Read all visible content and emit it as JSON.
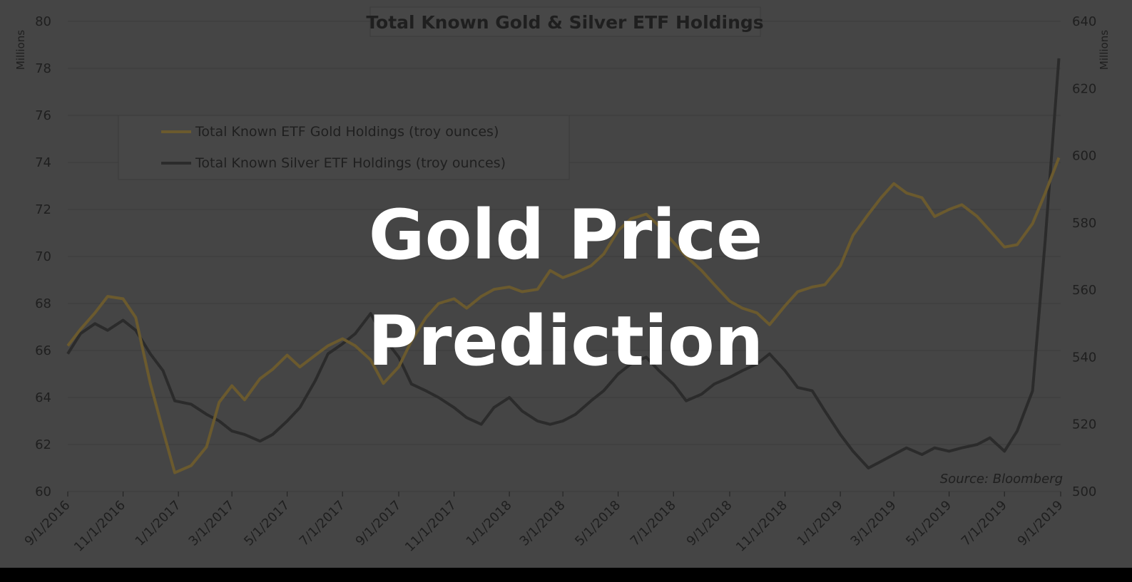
{
  "overlay": {
    "line1": "Gold Price",
    "line2": "Prediction"
  },
  "source_note": "Source: Bloomberg",
  "colors": {
    "background": "#454545",
    "grid": "#3a3a3a",
    "gold": "#6b5a2e",
    "silver": "#2b2b2b",
    "text": "#1f1f1f",
    "overlay_text": "#ffffff"
  },
  "chart_data": {
    "type": "line",
    "title": "Total Known Gold & Silver ETF Holdings",
    "ylabel_left": "Millions",
    "ylabel_right": "Millions",
    "ylim_left": [
      60,
      80
    ],
    "ylim_right": [
      500,
      640
    ],
    "yticks_left": [
      "60",
      "62",
      "64",
      "66",
      "68",
      "70",
      "72",
      "74",
      "76",
      "78",
      "80"
    ],
    "yticks_right": [
      "500",
      "520",
      "540",
      "560",
      "580",
      "600",
      "620",
      "640"
    ],
    "xlim": [
      "2016-09-01",
      "2019-09-01"
    ],
    "xticks": [
      "9/1/2016",
      "11/1/2016",
      "1/1/2017",
      "3/1/2017",
      "5/1/2017",
      "7/1/2017",
      "9/1/2017",
      "11/1/2017",
      "1/1/2018",
      "3/1/2018",
      "5/1/2018",
      "7/1/2018",
      "9/1/2018",
      "11/1/2018",
      "1/1/2019",
      "3/1/2019",
      "5/1/2019",
      "7/1/2019",
      "9/1/2019"
    ],
    "grid": true,
    "legend_position": "upper-left",
    "series": [
      {
        "name": "Total Known ETF Gold Holdings (troy ounces)",
        "axis": "left",
        "x": [
          "2016-09-01",
          "2016-09-15",
          "2016-10-01",
          "2016-10-15",
          "2016-11-01",
          "2016-11-15",
          "2016-12-01",
          "2016-12-15",
          "2016-12-28",
          "2017-01-15",
          "2017-02-01",
          "2017-02-15",
          "2017-03-01",
          "2017-03-15",
          "2017-04-01",
          "2017-04-15",
          "2017-05-01",
          "2017-05-15",
          "2017-06-01",
          "2017-06-15",
          "2017-07-01",
          "2017-07-15",
          "2017-08-01",
          "2017-08-15",
          "2017-09-01",
          "2017-09-15",
          "2017-10-01",
          "2017-10-15",
          "2017-11-01",
          "2017-11-15",
          "2017-12-01",
          "2017-12-15",
          "2018-01-01",
          "2018-01-15",
          "2018-02-01",
          "2018-02-15",
          "2018-03-01",
          "2018-03-15",
          "2018-04-01",
          "2018-04-15",
          "2018-05-01",
          "2018-05-15",
          "2018-06-01",
          "2018-06-15",
          "2018-07-01",
          "2018-07-15",
          "2018-08-01",
          "2018-08-15",
          "2018-09-01",
          "2018-09-15",
          "2018-10-01",
          "2018-10-15",
          "2018-11-01",
          "2018-11-15",
          "2018-12-01",
          "2018-12-15",
          "2019-01-01",
          "2019-01-15",
          "2019-02-01",
          "2019-02-15",
          "2019-03-01",
          "2019-03-15",
          "2019-04-01",
          "2019-04-15",
          "2019-05-01",
          "2019-05-15",
          "2019-06-01",
          "2019-06-15",
          "2019-07-01",
          "2019-07-15",
          "2019-08-01",
          "2019-08-15",
          "2019-08-30"
        ],
        "y": [
          66.2,
          66.9,
          67.6,
          68.3,
          68.2,
          67.4,
          64.6,
          62.6,
          60.8,
          61.1,
          61.9,
          63.8,
          64.5,
          63.9,
          64.8,
          65.2,
          65.8,
          65.3,
          65.8,
          66.2,
          66.5,
          66.2,
          65.6,
          64.6,
          65.3,
          66.4,
          67.4,
          68.0,
          68.2,
          67.8,
          68.3,
          68.6,
          68.7,
          68.5,
          68.6,
          69.4,
          69.1,
          69.3,
          69.6,
          70.1,
          71.1,
          71.6,
          71.8,
          71.3,
          70.6,
          70.0,
          69.4,
          68.8,
          68.1,
          67.8,
          67.6,
          67.1,
          67.9,
          68.5,
          68.7,
          68.8,
          69.6,
          70.9,
          71.8,
          72.5,
          73.1,
          72.7,
          72.5,
          71.7,
          72.0,
          72.2,
          71.7,
          71.1,
          70.4,
          70.5,
          71.4,
          72.7,
          74.2
        ]
      },
      {
        "name": "Total Known Silver ETF Holdings (troy ounces)",
        "axis": "right",
        "x": [
          "2016-09-01",
          "2016-09-15",
          "2016-10-01",
          "2016-10-15",
          "2016-11-01",
          "2016-11-15",
          "2016-12-01",
          "2016-12-15",
          "2016-12-28",
          "2017-01-15",
          "2017-02-01",
          "2017-02-15",
          "2017-03-01",
          "2017-03-15",
          "2017-04-01",
          "2017-04-15",
          "2017-05-01",
          "2017-05-15",
          "2017-06-01",
          "2017-06-15",
          "2017-07-01",
          "2017-07-15",
          "2017-08-01",
          "2017-08-15",
          "2017-09-01",
          "2017-09-15",
          "2017-10-01",
          "2017-10-15",
          "2017-11-01",
          "2017-11-15",
          "2017-12-01",
          "2017-12-15",
          "2018-01-01",
          "2018-01-15",
          "2018-02-01",
          "2018-02-15",
          "2018-03-01",
          "2018-03-15",
          "2018-04-01",
          "2018-04-15",
          "2018-05-01",
          "2018-05-15",
          "2018-06-01",
          "2018-06-15",
          "2018-07-01",
          "2018-07-15",
          "2018-08-01",
          "2018-08-15",
          "2018-09-01",
          "2018-09-15",
          "2018-10-01",
          "2018-10-15",
          "2018-11-01",
          "2018-11-15",
          "2018-12-01",
          "2018-12-15",
          "2019-01-01",
          "2019-01-15",
          "2019-02-01",
          "2019-02-15",
          "2019-03-01",
          "2019-03-15",
          "2019-04-01",
          "2019-04-15",
          "2019-05-01",
          "2019-05-15",
          "2019-06-01",
          "2019-06-15",
          "2019-07-01",
          "2019-07-15",
          "2019-08-01",
          "2019-08-15",
          "2019-08-30"
        ],
        "y": [
          541,
          547,
          550,
          548,
          551,
          548,
          541,
          536,
          527,
          526,
          523,
          521,
          518,
          517,
          515,
          517,
          521,
          525,
          533,
          541,
          544,
          547,
          553,
          546,
          540,
          532,
          530,
          528,
          525,
          522,
          520,
          525,
          528,
          524,
          521,
          520,
          521,
          523,
          527,
          530,
          535,
          538,
          540,
          536,
          532,
          527,
          529,
          532,
          534,
          536,
          538,
          541,
          536,
          531,
          530,
          524,
          517,
          512,
          507,
          509,
          511,
          513,
          511,
          513,
          512,
          513,
          514,
          516,
          512,
          518,
          530,
          575,
          629
        ]
      }
    ]
  }
}
